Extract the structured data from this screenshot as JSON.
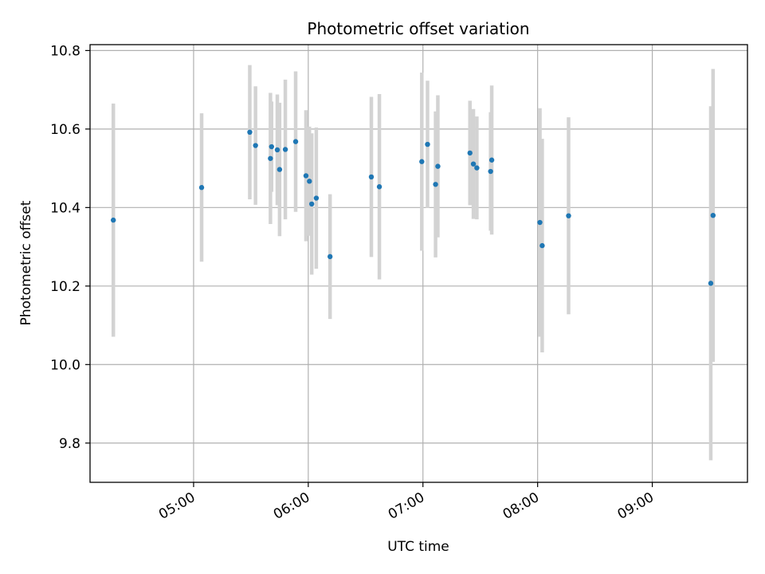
{
  "chart_data": {
    "type": "scatter",
    "title": "Photometric offset variation",
    "xlabel": "UTC time",
    "ylabel": "Photometric offset",
    "x_unit": "hours UTC",
    "xlim": [
      4.097,
      9.83
    ],
    "ylim": [
      9.7,
      10.815
    ],
    "x_ticks": [
      {
        "value": 5,
        "label": "05:00"
      },
      {
        "value": 6,
        "label": "06:00"
      },
      {
        "value": 7,
        "label": "07:00"
      },
      {
        "value": 8,
        "label": "08:00"
      },
      {
        "value": 9,
        "label": "09:00"
      }
    ],
    "y_ticks": [
      {
        "value": 9.8,
        "label": "9.8"
      },
      {
        "value": 10.0,
        "label": "10.0"
      },
      {
        "value": 10.2,
        "label": "10.2"
      },
      {
        "value": 10.4,
        "label": "10.4"
      },
      {
        "value": 10.6,
        "label": "10.6"
      },
      {
        "value": 10.8,
        "label": "10.8"
      }
    ],
    "grid": true,
    "point_color": "#1f77b4",
    "errorbar_color": "#d3d3d3",
    "points": [
      {
        "x": 4.3,
        "y": 10.368,
        "err": 0.297
      },
      {
        "x": 5.07,
        "y": 10.451,
        "err": 0.189
      },
      {
        "x": 5.49,
        "y": 10.592,
        "err": 0.171
      },
      {
        "x": 5.54,
        "y": 10.558,
        "err": 0.151
      },
      {
        "x": 5.67,
        "y": 10.525,
        "err": 0.167
      },
      {
        "x": 5.68,
        "y": 10.555,
        "err": 0.115
      },
      {
        "x": 5.73,
        "y": 10.547,
        "err": 0.141
      },
      {
        "x": 5.75,
        "y": 10.497,
        "err": 0.17
      },
      {
        "x": 5.8,
        "y": 10.548,
        "err": 0.178
      },
      {
        "x": 5.89,
        "y": 10.568,
        "err": 0.179
      },
      {
        "x": 5.98,
        "y": 10.481,
        "err": 0.167
      },
      {
        "x": 6.01,
        "y": 10.467,
        "err": 0.139
      },
      {
        "x": 6.03,
        "y": 10.409,
        "err": 0.18
      },
      {
        "x": 6.07,
        "y": 10.424,
        "err": 0.18
      },
      {
        "x": 6.19,
        "y": 10.275,
        "err": 0.159
      },
      {
        "x": 6.55,
        "y": 10.478,
        "err": 0.204
      },
      {
        "x": 6.62,
        "y": 10.453,
        "err": 0.236
      },
      {
        "x": 6.99,
        "y": 10.517,
        "err": 0.227
      },
      {
        "x": 7.04,
        "y": 10.561,
        "err": 0.162
      },
      {
        "x": 7.11,
        "y": 10.459,
        "err": 0.186
      },
      {
        "x": 7.13,
        "y": 10.505,
        "err": 0.181
      },
      {
        "x": 7.41,
        "y": 10.539,
        "err": 0.133
      },
      {
        "x": 7.44,
        "y": 10.511,
        "err": 0.14
      },
      {
        "x": 7.47,
        "y": 10.501,
        "err": 0.131
      },
      {
        "x": 7.59,
        "y": 10.492,
        "err": 0.151
      },
      {
        "x": 7.6,
        "y": 10.521,
        "err": 0.19
      },
      {
        "x": 8.02,
        "y": 10.362,
        "err": 0.291
      },
      {
        "x": 8.04,
        "y": 10.303,
        "err": 0.272
      },
      {
        "x": 8.27,
        "y": 10.379,
        "err": 0.251
      },
      {
        "x": 9.51,
        "y": 10.207,
        "err": 0.451
      },
      {
        "x": 9.53,
        "y": 10.38,
        "err": 0.373
      }
    ]
  }
}
